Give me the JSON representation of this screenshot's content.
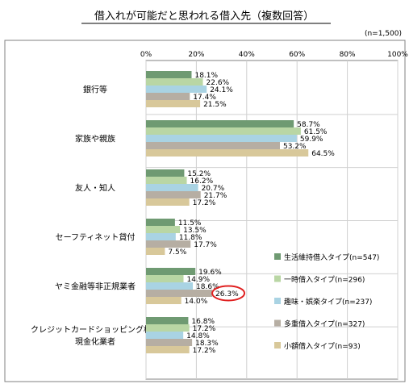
{
  "chart_data": {
    "type": "bar",
    "orientation": "horizontal",
    "title": "借入れが可能だと思われる借入先（複数回答）",
    "note": "(n=1,500)",
    "xlim": [
      0,
      100
    ],
    "x_ticks": [
      "0%",
      "20%",
      "40%",
      "60%",
      "80%",
      "100%"
    ],
    "grid": true,
    "legend_position": "bottom-right",
    "categories": [
      "銀行等",
      "家族や親族",
      "友人・知人",
      "セーフティネット貸付",
      "ヤミ金融等非正規業者",
      "クレジットカードショッピング枠の\n現金化業者"
    ],
    "series": [
      {
        "name": "生活維持借入タイプ(n=547)",
        "color": "#6f9a72",
        "values": [
          18.1,
          58.7,
          15.2,
          11.5,
          19.6,
          16.8
        ],
        "labels": [
          "18.1%",
          "58.7%",
          "15.2%",
          "11.5%",
          "19.6%",
          "16.8%"
        ]
      },
      {
        "name": "一時借入タイプ(n=296)",
        "color": "#b9d6a4",
        "values": [
          22.6,
          61.5,
          16.2,
          13.5,
          14.9,
          17.2
        ],
        "labels": [
          "22.6%",
          "61.5%",
          "16.2%",
          "13.5%",
          "14.9%",
          "17.2%"
        ]
      },
      {
        "name": "趣味・娯楽タイプ(n=237)",
        "color": "#a9d3e3",
        "values": [
          24.1,
          59.9,
          20.7,
          11.8,
          18.6,
          14.8
        ],
        "labels": [
          "24.1%",
          "59.9%",
          "20.7%",
          "11.8%",
          "18.6%",
          "14.8%"
        ]
      },
      {
        "name": "多重借入タイプ(n=327)",
        "color": "#b6aea3",
        "values": [
          17.4,
          53.2,
          21.7,
          17.7,
          26.3,
          18.3
        ],
        "labels": [
          "17.4%",
          "53.2%",
          "21.7%",
          "17.7%",
          "26.3%",
          "18.3%"
        ]
      },
      {
        "name": "小額借入タイプ(n=93)",
        "color": "#d8c89a",
        "values": [
          21.5,
          64.5,
          17.2,
          7.5,
          14.0,
          17.2
        ],
        "labels": [
          "21.5%",
          "64.5%",
          "17.2%",
          "7.5%",
          "14.0%",
          "17.2%"
        ]
      }
    ],
    "highlight": {
      "series_index": 3,
      "category_index": 4,
      "color": "#e02020"
    }
  }
}
